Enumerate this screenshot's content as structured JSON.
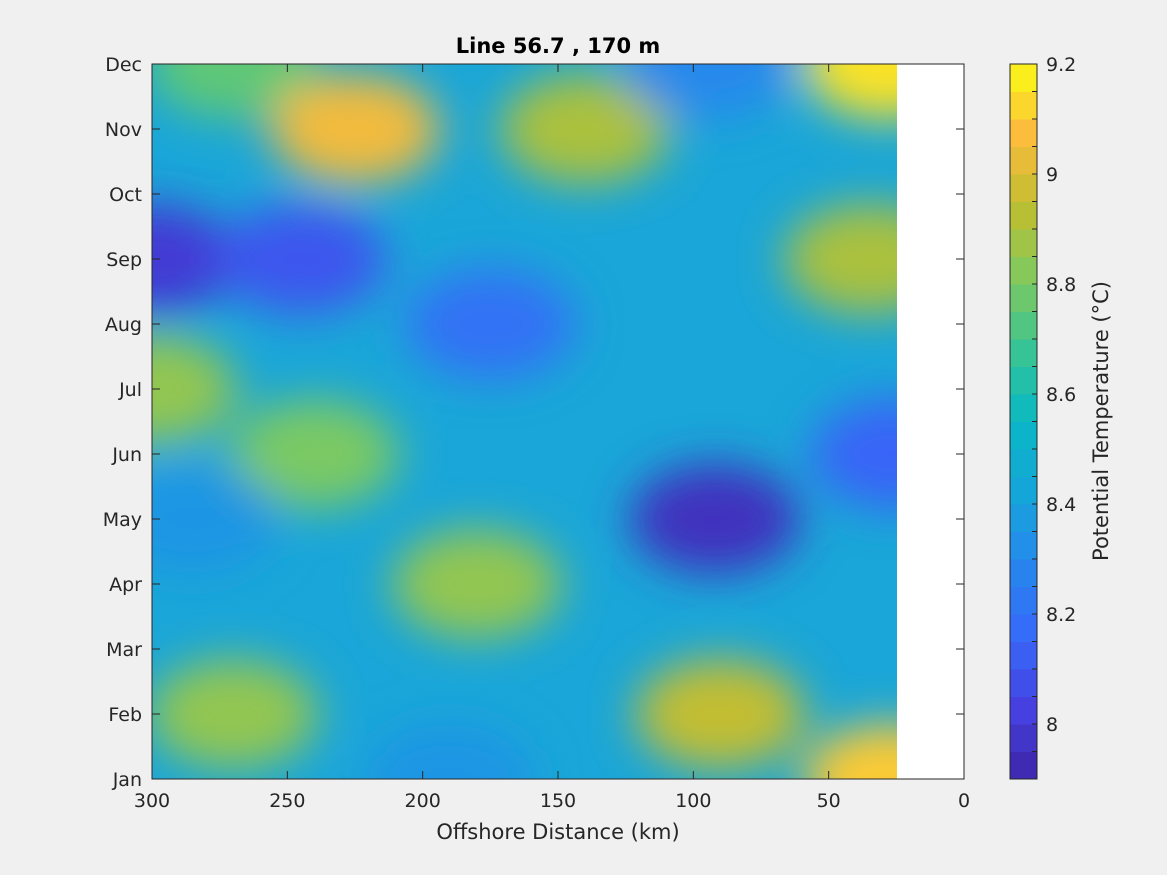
{
  "chart_data": {
    "type": "heatmap",
    "subtype": "filled-contour",
    "title": "Line 56.7 , 170 m",
    "xlabel": "Offshore Distance (km)",
    "ylabel": "",
    "xlim": [
      300,
      0
    ],
    "x_direction": "reversed",
    "xticks": [
      "300",
      "250",
      "200",
      "150",
      "100",
      "50",
      "0"
    ],
    "ylim": [
      "Jan",
      "Dec"
    ],
    "yticks": [
      "Jan",
      "Feb",
      "Mar",
      "Apr",
      "May",
      "Jun",
      "Jul",
      "Aug",
      "Sep",
      "Oct",
      "Nov",
      "Dec"
    ],
    "data_extent_x": [
      300,
      25
    ],
    "colorbar": {
      "label": "Potential Temperature (°C)",
      "range": [
        7.9,
        9.2
      ],
      "ticks": [
        "8",
        "8.2",
        "8.4",
        "8.6",
        "8.8",
        "9",
        "9.2"
      ],
      "colormap": "parula",
      "levels": 26
    },
    "features": [
      {
        "x": 270,
        "month": "Dec",
        "value": 8.75
      },
      {
        "x": 225,
        "month": "Nov",
        "value": 9.05
      },
      {
        "x": 140,
        "month": "Nov",
        "value": 8.9
      },
      {
        "x": 95,
        "month": "Dec",
        "value": 8.3
      },
      {
        "x": 28,
        "month": "Dec",
        "value": 9.15
      },
      {
        "x": 35,
        "month": "Sep",
        "value": 8.9
      },
      {
        "x": 300,
        "month": "Sep",
        "value": 8.0
      },
      {
        "x": 245,
        "month": "Sep",
        "value": 8.1
      },
      {
        "x": 175,
        "month": "Aug",
        "value": 8.2
      },
      {
        "x": 240,
        "month": "Jun",
        "value": 8.8
      },
      {
        "x": 300,
        "month": "Jul",
        "value": 8.85
      },
      {
        "x": 285,
        "month": "May",
        "value": 8.35
      },
      {
        "x": 92,
        "month": "May",
        "value": 7.95
      },
      {
        "x": 25,
        "month": "Jun",
        "value": 8.15
      },
      {
        "x": 180,
        "month": "Apr",
        "value": 8.85
      },
      {
        "x": 270,
        "month": "Feb",
        "value": 8.85
      },
      {
        "x": 190,
        "month": "Jan",
        "value": 8.35
      },
      {
        "x": 90,
        "month": "Feb",
        "value": 8.95
      },
      {
        "x": 28,
        "month": "Jan",
        "value": 9.1
      }
    ]
  }
}
